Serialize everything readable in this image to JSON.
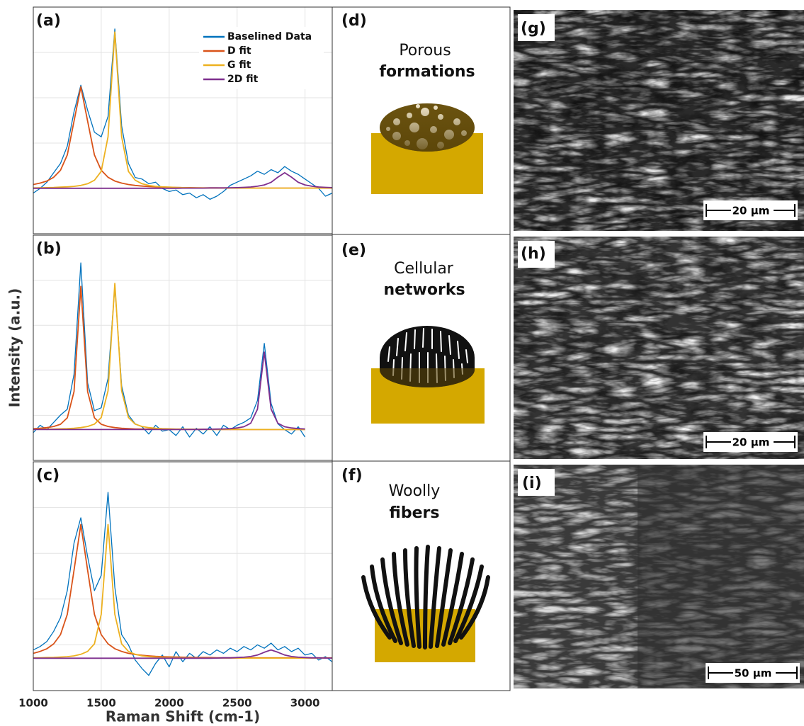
{
  "chart_data": [
    {
      "type": "line",
      "label": "(a)",
      "xlim": [
        1000,
        3200
      ],
      "ylim": [
        -0.29,
        1.16
      ],
      "grid": true,
      "legend": "upper right",
      "x": [
        1000,
        1050,
        1100,
        1150,
        1200,
        1250,
        1300,
        1350,
        1400,
        1450,
        1500,
        1550,
        1600,
        1650,
        1700,
        1750,
        1800,
        1850,
        1900,
        1950,
        2000,
        2050,
        2100,
        2150,
        2200,
        2250,
        2300,
        2350,
        2400,
        2450,
        2500,
        2550,
        2600,
        2650,
        2700,
        2750,
        2800,
        2850,
        2900,
        2950,
        3000,
        3050,
        3100,
        3150,
        3200
      ],
      "series": [
        {
          "name": "Baselined Data",
          "color": "#0072bd",
          "values": [
            -0.03,
            0.0,
            0.04,
            0.1,
            0.16,
            0.27,
            0.49,
            0.66,
            0.5,
            0.36,
            0.33,
            0.46,
            1.02,
            0.4,
            0.16,
            0.07,
            0.06,
            0.03,
            0.04,
            0.0,
            -0.02,
            -0.01,
            -0.04,
            -0.03,
            -0.06,
            -0.04,
            -0.07,
            -0.05,
            -0.02,
            0.02,
            0.04,
            0.06,
            0.08,
            0.11,
            0.09,
            0.12,
            0.1,
            0.14,
            0.11,
            0.09,
            0.06,
            0.03,
            0.0,
            -0.05,
            -0.03
          ]
        },
        {
          "name": "D fit",
          "color": "#d95319",
          "values": [
            0.025,
            0.034,
            0.047,
            0.071,
            0.116,
            0.214,
            0.43,
            0.65,
            0.43,
            0.214,
            0.116,
            0.071,
            0.047,
            0.034,
            0.025,
            0.019,
            0.015,
            0.012,
            0.01,
            0.008,
            0.007,
            0.006,
            0.005,
            0.005,
            0.004,
            0.003,
            0.003,
            0.003,
            0.003,
            0.003,
            0.003,
            0.002,
            0.002,
            0.002,
            0.002,
            0.002,
            0.002,
            0.002,
            0.002,
            0.002,
            0.002,
            0.002,
            0.002,
            0.002,
            0.002
          ]
        },
        {
          "name": "G fit",
          "color": "#edb120",
          "values": [
            0.003,
            0.004,
            0.005,
            0.006,
            0.008,
            0.01,
            0.013,
            0.019,
            0.03,
            0.052,
            0.109,
            0.33,
            1.0,
            0.33,
            0.109,
            0.052,
            0.03,
            0.019,
            0.013,
            0.01,
            0.008,
            0.006,
            0.005,
            0.004,
            0.003,
            0.003,
            0.003,
            0.003,
            0.002,
            0.002,
            0.002,
            0.002,
            0.002,
            0.002,
            0.002,
            0.002,
            0.002,
            0.002,
            0.002,
            0.002,
            0.002,
            0.002,
            0.002,
            0.002,
            0.002
          ]
        },
        {
          "name": "2D fit",
          "color": "#7e2f8e",
          "values": [
            0.001,
            0.001,
            0.001,
            0.001,
            0.001,
            0.001,
            0.001,
            0.001,
            0.001,
            0.001,
            0.001,
            0.001,
            0.001,
            0.001,
            0.001,
            0.001,
            0.001,
            0.001,
            0.001,
            0.001,
            0.001,
            0.001,
            0.002,
            0.002,
            0.002,
            0.002,
            0.003,
            0.003,
            0.003,
            0.004,
            0.005,
            0.007,
            0.009,
            0.014,
            0.022,
            0.039,
            0.072,
            0.1,
            0.072,
            0.039,
            0.022,
            0.014,
            0.009,
            0.007,
            0.005
          ]
        }
      ]
    },
    {
      "type": "line",
      "label": "(b)",
      "xlim": [
        1000,
        3200
      ],
      "ylim": [
        -0.21,
        1.33
      ],
      "grid": true,
      "ylabel": "Intensity (a.u.)",
      "x": [
        1000,
        1050,
        1100,
        1150,
        1200,
        1250,
        1300,
        1350,
        1400,
        1450,
        1500,
        1550,
        1600,
        1650,
        1700,
        1750,
        1800,
        1850,
        1900,
        1950,
        2000,
        2050,
        2100,
        2150,
        2200,
        2250,
        2300,
        2350,
        2400,
        2450,
        2500,
        2550,
        2600,
        2650,
        2700,
        2750,
        2800,
        2850,
        2900,
        2950,
        3000
      ],
      "series": [
        {
          "color": "#0072bd",
          "values": [
            -0.02,
            0.03,
            0.0,
            0.05,
            0.1,
            0.14,
            0.38,
            1.14,
            0.32,
            0.13,
            0.15,
            0.35,
            0.98,
            0.3,
            0.1,
            0.04,
            0.02,
            -0.03,
            0.03,
            -0.01,
            0.0,
            -0.04,
            0.02,
            -0.05,
            0.01,
            -0.03,
            0.02,
            -0.04,
            0.03,
            0.0,
            0.03,
            0.05,
            0.08,
            0.2,
            0.59,
            0.18,
            0.04,
            0.0,
            -0.03,
            0.02,
            -0.05
          ]
        },
        {
          "color": "#d95319",
          "values": [
            0.007,
            0.01,
            0.014,
            0.022,
            0.037,
            0.081,
            0.26,
            0.98,
            0.26,
            0.081,
            0.037,
            0.022,
            0.014,
            0.01,
            0.007,
            0.005,
            0.004,
            0.004,
            0.003,
            0.002,
            0.002,
            0.002,
            0.002,
            0.002,
            0.002,
            0.002,
            0.002,
            0.001,
            0.001,
            0.001,
            0.001,
            0.001,
            0.001,
            0.001,
            0.001,
            0.001,
            0.001,
            0.001,
            0.001,
            0.001,
            0.001
          ]
        },
        {
          "color": "#edb120",
          "values": [
            0.002,
            0.003,
            0.004,
            0.004,
            0.006,
            0.007,
            0.01,
            0.014,
            0.022,
            0.038,
            0.083,
            0.265,
            1.0,
            0.265,
            0.083,
            0.038,
            0.022,
            0.014,
            0.01,
            0.007,
            0.006,
            0.004,
            0.004,
            0.003,
            0.002,
            0.002,
            0.002,
            0.002,
            0.002,
            0.002,
            0.002,
            0.001,
            0.001,
            0.001,
            0.001,
            0.001,
            0.001,
            0.001,
            0.001,
            0.001,
            0.001
          ]
        },
        {
          "color": "#7e2f8e",
          "values": [
            0.001,
            0.001,
            0.001,
            0.001,
            0.001,
            0.001,
            0.001,
            0.001,
            0.001,
            0.001,
            0.001,
            0.001,
            0.001,
            0.001,
            0.001,
            0.001,
            0.001,
            0.001,
            0.001,
            0.001,
            0.001,
            0.001,
            0.001,
            0.001,
            0.001,
            0.002,
            0.003,
            0.004,
            0.005,
            0.007,
            0.012,
            0.02,
            0.044,
            0.14,
            0.53,
            0.14,
            0.044,
            0.02,
            0.012,
            0.007,
            0.005
          ]
        }
      ]
    },
    {
      "type": "line",
      "label": "(c)",
      "xlim": [
        1000,
        3200
      ],
      "ylim": [
        -0.19,
        1.16
      ],
      "grid": true,
      "xlabel": "Raman Shift (cm-1)",
      "xticks": [
        1000,
        1500,
        2000,
        2500,
        3000
      ],
      "x": [
        1000,
        1050,
        1100,
        1150,
        1200,
        1250,
        1300,
        1350,
        1400,
        1450,
        1500,
        1550,
        1600,
        1650,
        1700,
        1750,
        1800,
        1850,
        1900,
        1950,
        2000,
        2050,
        2100,
        2150,
        2200,
        2250,
        2300,
        2350,
        2400,
        2450,
        2500,
        2550,
        2600,
        2650,
        2700,
        2750,
        2800,
        2850,
        2900,
        2950,
        3000,
        3050,
        3100,
        3150,
        3200
      ],
      "series": [
        {
          "color": "#0072bd",
          "values": [
            0.05,
            0.07,
            0.1,
            0.16,
            0.24,
            0.4,
            0.68,
            0.83,
            0.6,
            0.4,
            0.49,
            0.98,
            0.42,
            0.14,
            0.08,
            -0.01,
            -0.06,
            -0.1,
            -0.03,
            0.02,
            -0.05,
            0.04,
            -0.02,
            0.03,
            0.0,
            0.04,
            0.02,
            0.05,
            0.03,
            0.06,
            0.04,
            0.07,
            0.05,
            0.08,
            0.06,
            0.09,
            0.05,
            0.07,
            0.04,
            0.06,
            0.02,
            0.03,
            -0.01,
            0.01,
            -0.02
          ]
        },
        {
          "color": "#d95319",
          "values": [
            0.03,
            0.041,
            0.057,
            0.086,
            0.14,
            0.26,
            0.52,
            0.79,
            0.52,
            0.26,
            0.14,
            0.086,
            0.057,
            0.041,
            0.03,
            0.023,
            0.018,
            0.015,
            0.012,
            0.01,
            0.009,
            0.008,
            0.007,
            0.006,
            0.005,
            0.005,
            0.005,
            0.004,
            0.004,
            0.004,
            0.004,
            0.003,
            0.003,
            0.003,
            0.003,
            0.003,
            0.003,
            0.003,
            0.003,
            0.003,
            0.003,
            0.003,
            0.003,
            0.003,
            0.003
          ]
        },
        {
          "color": "#edb120",
          "values": [
            0.003,
            0.004,
            0.005,
            0.006,
            0.008,
            0.01,
            0.015,
            0.024,
            0.041,
            0.086,
            0.26,
            0.79,
            0.26,
            0.086,
            0.041,
            0.024,
            0.015,
            0.01,
            0.008,
            0.006,
            0.005,
            0.004,
            0.003,
            0.002,
            0.002,
            0.002,
            0.002,
            0.002,
            0.002,
            0.002,
            0.002,
            0.002,
            0.002,
            0.002,
            0.002,
            0.002,
            0.002,
            0.002,
            0.002,
            0.002,
            0.002,
            0.002,
            0.002,
            0.002,
            0.002
          ]
        },
        {
          "color": "#7e2f8e",
          "values": [
            0.001,
            0.001,
            0.001,
            0.001,
            0.001,
            0.001,
            0.001,
            0.001,
            0.001,
            0.001,
            0.001,
            0.001,
            0.001,
            0.001,
            0.001,
            0.001,
            0.001,
            0.001,
            0.001,
            0.001,
            0.001,
            0.001,
            0.001,
            0.001,
            0.001,
            0.001,
            0.001,
            0.002,
            0.003,
            0.003,
            0.005,
            0.007,
            0.011,
            0.02,
            0.036,
            0.05,
            0.036,
            0.02,
            0.011,
            0.007,
            0.005,
            0.003,
            0.003,
            0.002,
            0.002
          ]
        }
      ]
    }
  ],
  "diagrams": [
    {
      "label": "(d)",
      "title": "Porous",
      "subtitle": "formations"
    },
    {
      "label": "(e)",
      "title": "Cellular",
      "subtitle": "networks"
    },
    {
      "label": "(f)",
      "title": "Woolly",
      "subtitle": "fibers"
    }
  ],
  "micrographs": [
    {
      "label": "(g)",
      "scale_bar": "20 μm"
    },
    {
      "label": "(h)",
      "scale_bar": "20 μm"
    },
    {
      "label": "(i)",
      "scale_bar": "50 μm"
    }
  ]
}
